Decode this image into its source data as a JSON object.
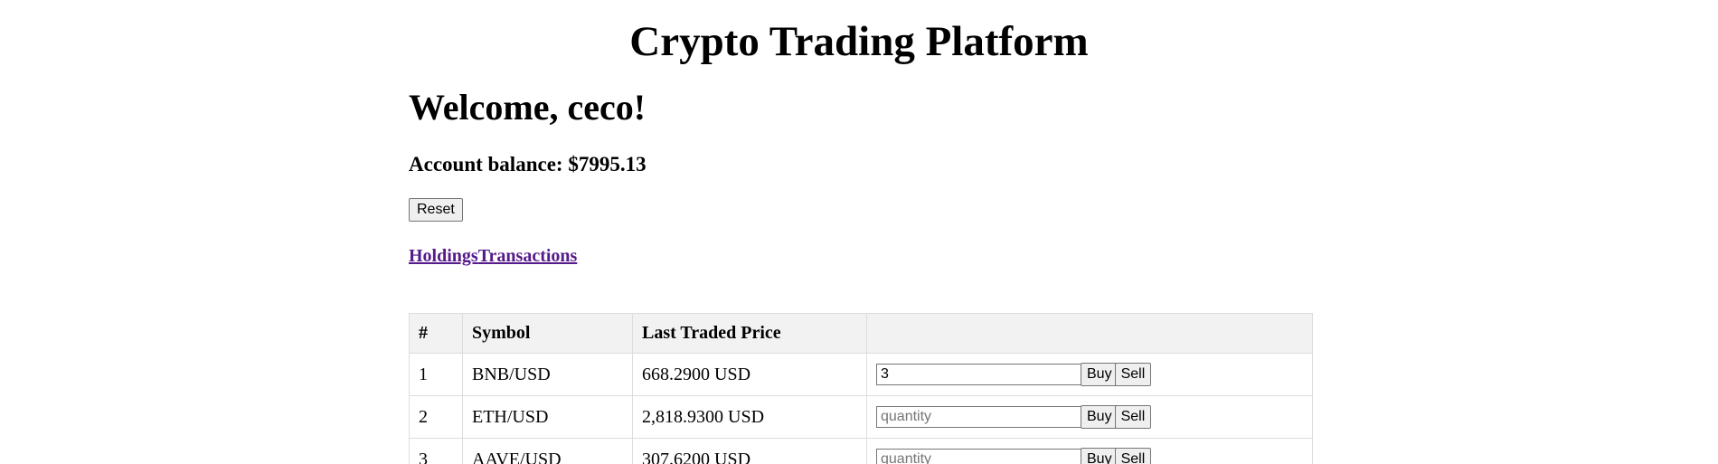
{
  "header": {
    "title": "Crypto Trading Platform"
  },
  "account": {
    "welcome": "Welcome, ceco!",
    "balance_text": "Account balance: $7995.13",
    "reset_label": "Reset"
  },
  "tabs": {
    "holdings": "Holdings",
    "transactions": "Transactions"
  },
  "table": {
    "headers": [
      "#",
      "Symbol",
      "Last Traded Price",
      ""
    ],
    "buy_label": "Buy",
    "sell_label": "Sell",
    "rows": [
      {
        "index": "1",
        "symbol": "BNB/USD",
        "price": "668.2900 USD",
        "quantity_value": "3",
        "quantity_placeholder": "quantity"
      },
      {
        "index": "2",
        "symbol": "ETH/USD",
        "price": "2,818.9300 USD",
        "quantity_value": "",
        "quantity_placeholder": "quantity"
      },
      {
        "index": "3",
        "symbol": "AAVE/USD",
        "price": "307.6200 USD",
        "quantity_value": "",
        "quantity_placeholder": "quantity"
      }
    ]
  },
  "colors": {
    "link_visited": "#551a8b",
    "header_bg": "#f2f2f2",
    "border": "#dddddd"
  }
}
